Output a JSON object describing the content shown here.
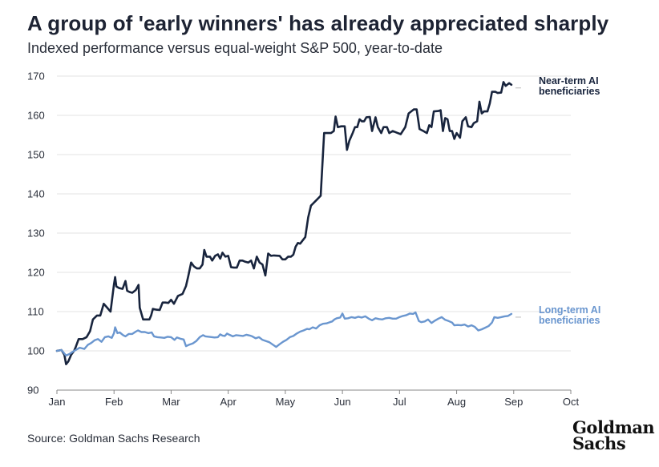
{
  "title": "A group of 'early winners' has already appreciated sharply",
  "subtitle": "Indexed performance versus equal-weight S&P 500, year-to-date",
  "source": "Source: Goldman Sachs Research",
  "logo": {
    "line1": "Goldman",
    "line2": "Sachs"
  },
  "colors": {
    "near": "#18243d",
    "long": "#6a96cf",
    "grid": "#e3e3e3",
    "axis": "#888888"
  },
  "chart_data": {
    "type": "line",
    "xlabel": "",
    "ylabel": "",
    "ylim": [
      90,
      170
    ],
    "yticks": [
      90,
      100,
      110,
      120,
      130,
      140,
      150,
      160,
      170
    ],
    "xlim_month": [
      0,
      9
    ],
    "xticks": [
      "Jan",
      "Feb",
      "Mar",
      "Apr",
      "May",
      "Jun",
      "Jul",
      "Aug",
      "Sep",
      "Oct"
    ],
    "grid": "horizontal",
    "legend": "inline-right",
    "series": [
      {
        "name": "Near-term AI beneficiaries",
        "label_lines": [
          "Near-term AI",
          "beneficiaries"
        ],
        "points": [
          [
            0.0,
            100
          ],
          [
            0.08,
            100.2
          ],
          [
            0.13,
            99
          ],
          [
            0.16,
            96.6
          ],
          [
            0.2,
            97.3
          ],
          [
            0.25,
            99
          ],
          [
            0.3,
            100
          ],
          [
            0.33,
            101
          ],
          [
            0.38,
            103
          ],
          [
            0.45,
            103
          ],
          [
            0.52,
            103.5
          ],
          [
            0.58,
            105
          ],
          [
            0.63,
            108
          ],
          [
            0.7,
            109
          ],
          [
            0.76,
            109
          ],
          [
            0.82,
            112
          ],
          [
            0.88,
            111
          ],
          [
            0.94,
            110
          ],
          [
            1.0,
            117
          ],
          [
            1.02,
            118.8
          ],
          [
            1.04,
            116.4
          ],
          [
            1.09,
            116
          ],
          [
            1.15,
            115.8
          ],
          [
            1.2,
            117.8
          ],
          [
            1.23,
            115.3
          ],
          [
            1.27,
            115
          ],
          [
            1.32,
            114.8
          ],
          [
            1.38,
            115.5
          ],
          [
            1.43,
            116.8
          ],
          [
            1.45,
            111
          ],
          [
            1.51,
            108
          ],
          [
            1.55,
            108
          ],
          [
            1.62,
            108
          ],
          [
            1.65,
            109
          ],
          [
            1.68,
            110.7
          ],
          [
            1.74,
            110.5
          ],
          [
            1.8,
            110.4
          ],
          [
            1.85,
            112.3
          ],
          [
            1.9,
            112.3
          ],
          [
            1.95,
            112.2
          ],
          [
            2.0,
            113
          ],
          [
            2.05,
            112
          ],
          [
            2.12,
            114
          ],
          [
            2.2,
            114.5
          ],
          [
            2.26,
            116.5
          ],
          [
            2.3,
            119
          ],
          [
            2.35,
            122.5
          ],
          [
            2.4,
            121.5
          ],
          [
            2.45,
            121
          ],
          [
            2.5,
            121
          ],
          [
            2.55,
            122
          ],
          [
            2.58,
            125.7
          ],
          [
            2.62,
            124
          ],
          [
            2.68,
            124
          ],
          [
            2.72,
            123
          ],
          [
            2.77,
            124.2
          ],
          [
            2.82,
            124.6
          ],
          [
            2.86,
            123.5
          ],
          [
            2.9,
            125
          ],
          [
            2.95,
            124
          ],
          [
            3.0,
            124.2
          ],
          [
            3.05,
            121.3
          ],
          [
            3.1,
            121.2
          ],
          [
            3.15,
            121.2
          ],
          [
            3.2,
            123
          ],
          [
            3.25,
            123
          ],
          [
            3.3,
            122.7
          ],
          [
            3.35,
            122.5
          ],
          [
            3.4,
            123
          ],
          [
            3.45,
            121
          ],
          [
            3.5,
            124
          ],
          [
            3.55,
            122.5
          ],
          [
            3.6,
            122
          ],
          [
            3.65,
            119.2
          ],
          [
            3.7,
            124.8
          ],
          [
            3.75,
            124.2
          ],
          [
            3.8,
            124.3
          ],
          [
            3.9,
            124.2
          ],
          [
            3.95,
            123.3
          ],
          [
            4.0,
            123.3
          ],
          [
            4.05,
            124
          ],
          [
            4.1,
            124
          ],
          [
            4.14,
            124.5
          ],
          [
            4.18,
            126.5
          ],
          [
            4.22,
            127.5
          ],
          [
            4.26,
            127.3
          ],
          [
            4.35,
            129
          ],
          [
            4.4,
            134
          ],
          [
            4.45,
            137
          ],
          [
            4.55,
            138.5
          ],
          [
            4.62,
            139.5
          ],
          [
            4.68,
            155.5
          ],
          [
            4.8,
            155.5
          ],
          [
            4.85,
            156
          ],
          [
            4.88,
            159.7
          ],
          [
            4.92,
            157
          ],
          [
            4.98,
            157.2
          ],
          [
            5.04,
            157.2
          ],
          [
            5.08,
            151.2
          ],
          [
            5.12,
            153.5
          ],
          [
            5.18,
            155.5
          ],
          [
            5.22,
            157
          ],
          [
            5.26,
            157
          ],
          [
            5.3,
            159
          ],
          [
            5.34,
            158.5
          ],
          [
            5.38,
            158.5
          ],
          [
            5.42,
            159.5
          ],
          [
            5.48,
            159.6
          ],
          [
            5.52,
            156
          ],
          [
            5.58,
            159.5
          ],
          [
            5.62,
            157
          ],
          [
            5.68,
            155.5
          ],
          [
            5.72,
            157
          ],
          [
            5.78,
            157
          ],
          [
            5.82,
            155.5
          ],
          [
            5.88,
            156
          ],
          [
            5.95,
            155.6
          ],
          [
            6.02,
            155.2
          ],
          [
            6.1,
            157
          ],
          [
            6.16,
            160.5
          ],
          [
            6.25,
            161.5
          ],
          [
            6.3,
            161.5
          ],
          [
            6.35,
            156.5
          ],
          [
            6.42,
            156
          ],
          [
            6.48,
            155.5
          ],
          [
            6.52,
            157.5
          ],
          [
            6.56,
            157
          ],
          [
            6.6,
            161
          ],
          [
            6.68,
            161.1
          ],
          [
            6.72,
            161.3
          ],
          [
            6.76,
            156
          ],
          [
            6.8,
            159.3
          ],
          [
            6.84,
            159
          ],
          [
            6.88,
            156
          ],
          [
            6.92,
            156
          ],
          [
            6.96,
            154
          ],
          [
            7.0,
            155.5
          ],
          [
            7.06,
            154.3
          ],
          [
            7.1,
            158.5
          ],
          [
            7.16,
            159.5
          ],
          [
            7.2,
            157.2
          ],
          [
            7.26,
            157
          ],
          [
            7.3,
            158
          ],
          [
            7.36,
            158.5
          ],
          [
            7.4,
            163.5
          ],
          [
            7.44,
            160.5
          ],
          [
            7.48,
            161
          ],
          [
            7.54,
            161
          ],
          [
            7.58,
            163
          ],
          [
            7.62,
            166
          ],
          [
            7.68,
            166
          ],
          [
            7.72,
            165.7
          ],
          [
            7.78,
            165.8
          ],
          [
            7.82,
            168.5
          ],
          [
            7.86,
            167.5
          ],
          [
            7.92,
            168.2
          ],
          [
            7.96,
            167.8
          ]
        ]
      },
      {
        "name": "Long-term AI beneficiaries",
        "label_lines": [
          "Long-term AI",
          "beneficiaries"
        ],
        "points": [
          [
            0.0,
            100
          ],
          [
            0.08,
            100.2
          ],
          [
            0.12,
            99.5
          ],
          [
            0.16,
            98.8
          ],
          [
            0.22,
            99.2
          ],
          [
            0.28,
            99.8
          ],
          [
            0.34,
            100.3
          ],
          [
            0.4,
            100.8
          ],
          [
            0.48,
            100.5
          ],
          [
            0.54,
            101.5
          ],
          [
            0.6,
            102
          ],
          [
            0.66,
            102.7
          ],
          [
            0.72,
            103
          ],
          [
            0.78,
            102.3
          ],
          [
            0.84,
            103.5
          ],
          [
            0.9,
            103.7
          ],
          [
            0.96,
            103.3
          ],
          [
            1.0,
            104.5
          ],
          [
            1.02,
            106
          ],
          [
            1.06,
            104.5
          ],
          [
            1.1,
            104.7
          ],
          [
            1.16,
            104
          ],
          [
            1.2,
            103.7
          ],
          [
            1.26,
            104.3
          ],
          [
            1.32,
            104.3
          ],
          [
            1.38,
            104.9
          ],
          [
            1.42,
            105.2
          ],
          [
            1.48,
            104.8
          ],
          [
            1.54,
            104.8
          ],
          [
            1.6,
            104.5
          ],
          [
            1.66,
            104.7
          ],
          [
            1.7,
            103.7
          ],
          [
            1.76,
            103.5
          ],
          [
            1.82,
            103.4
          ],
          [
            1.88,
            103.3
          ],
          [
            1.94,
            103.6
          ],
          [
            2.0,
            103.5
          ],
          [
            2.06,
            102.8
          ],
          [
            2.1,
            103.4
          ],
          [
            2.16,
            103.1
          ],
          [
            2.22,
            102.9
          ],
          [
            2.26,
            101.2
          ],
          [
            2.32,
            101.6
          ],
          [
            2.38,
            101.9
          ],
          [
            2.44,
            102.5
          ],
          [
            2.5,
            103.5
          ],
          [
            2.56,
            104
          ],
          [
            2.6,
            103.7
          ],
          [
            2.66,
            103.6
          ],
          [
            2.72,
            103.5
          ],
          [
            2.76,
            103.4
          ],
          [
            2.82,
            103.5
          ],
          [
            2.86,
            104.2
          ],
          [
            2.9,
            103.9
          ],
          [
            2.94,
            103.8
          ],
          [
            2.98,
            104.4
          ],
          [
            3.02,
            104.1
          ],
          [
            3.08,
            103.7
          ],
          [
            3.14,
            104
          ],
          [
            3.2,
            103.9
          ],
          [
            3.26,
            103.8
          ],
          [
            3.32,
            104.1
          ],
          [
            3.38,
            103.9
          ],
          [
            3.42,
            103.7
          ],
          [
            3.48,
            103.2
          ],
          [
            3.54,
            103.5
          ],
          [
            3.6,
            102.8
          ],
          [
            3.66,
            102.5
          ],
          [
            3.72,
            102.2
          ],
          [
            3.78,
            101.6
          ],
          [
            3.84,
            101
          ],
          [
            3.9,
            101.7
          ],
          [
            3.96,
            102.3
          ],
          [
            4.02,
            102.8
          ],
          [
            4.08,
            103.5
          ],
          [
            4.14,
            103.8
          ],
          [
            4.2,
            104.4
          ],
          [
            4.26,
            104.9
          ],
          [
            4.32,
            105.2
          ],
          [
            4.38,
            105.6
          ],
          [
            4.42,
            105.5
          ],
          [
            4.48,
            106
          ],
          [
            4.54,
            105.7
          ],
          [
            4.6,
            106.5
          ],
          [
            4.66,
            106.9
          ],
          [
            4.72,
            107
          ],
          [
            4.78,
            107.3
          ],
          [
            4.82,
            107.5
          ],
          [
            4.86,
            108
          ],
          [
            4.9,
            108.3
          ],
          [
            4.96,
            108.5
          ],
          [
            5.0,
            109.5
          ],
          [
            5.04,
            108.2
          ],
          [
            5.1,
            108.3
          ],
          [
            5.16,
            108.6
          ],
          [
            5.22,
            108.4
          ],
          [
            5.28,
            108.7
          ],
          [
            5.34,
            108.5
          ],
          [
            5.4,
            108.8
          ],
          [
            5.46,
            108.2
          ],
          [
            5.52,
            107.8
          ],
          [
            5.58,
            108.3
          ],
          [
            5.64,
            108.1
          ],
          [
            5.7,
            108
          ],
          [
            5.76,
            108.3
          ],
          [
            5.82,
            108.4
          ],
          [
            5.88,
            108.2
          ],
          [
            5.94,
            108.2
          ],
          [
            6.0,
            108.6
          ],
          [
            6.06,
            108.9
          ],
          [
            6.12,
            109.1
          ],
          [
            6.18,
            109.5
          ],
          [
            6.24,
            109.4
          ],
          [
            6.28,
            109.8
          ],
          [
            6.34,
            107.6
          ],
          [
            6.38,
            107.3
          ],
          [
            6.44,
            107.5
          ],
          [
            6.5,
            108
          ],
          [
            6.56,
            107.1
          ],
          [
            6.62,
            107.7
          ],
          [
            6.68,
            108.2
          ],
          [
            6.74,
            108.6
          ],
          [
            6.8,
            107.9
          ],
          [
            6.86,
            107.6
          ],
          [
            6.92,
            107.2
          ],
          [
            6.96,
            106.5
          ],
          [
            7.02,
            106.6
          ],
          [
            7.08,
            106.5
          ],
          [
            7.14,
            106.7
          ],
          [
            7.2,
            106.2
          ],
          [
            7.26,
            106.5
          ],
          [
            7.32,
            106.1
          ],
          [
            7.38,
            105.2
          ],
          [
            7.44,
            105.5
          ],
          [
            7.5,
            105.9
          ],
          [
            7.56,
            106.3
          ],
          [
            7.62,
            107.2
          ],
          [
            7.66,
            108.6
          ],
          [
            7.72,
            108.4
          ],
          [
            7.78,
            108.6
          ],
          [
            7.84,
            108.8
          ],
          [
            7.9,
            108.9
          ],
          [
            7.96,
            109.4
          ]
        ]
      }
    ]
  }
}
